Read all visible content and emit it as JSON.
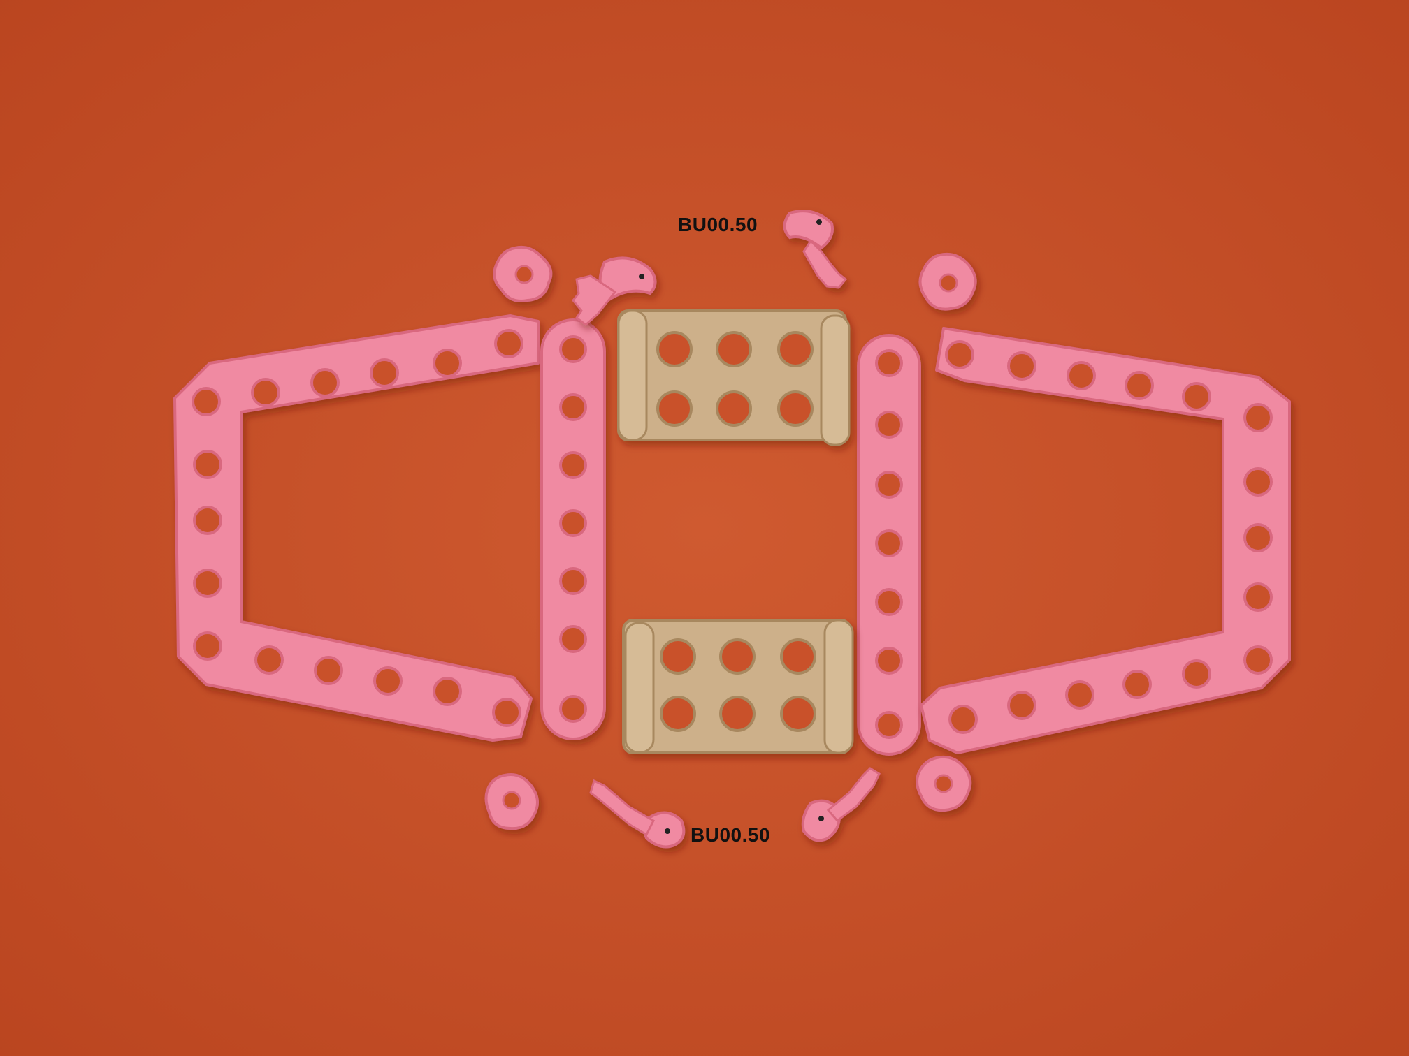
{
  "labels": {
    "top": "BU00.50",
    "bottom": "BU00.50"
  },
  "colors": {
    "background": "#c9512b",
    "pink_part": "#f08aa2",
    "pink_shadow": "#d9687f",
    "tan_part": "#cdb08a",
    "tan_shadow": "#a8885f",
    "label_text": "#111111"
  }
}
